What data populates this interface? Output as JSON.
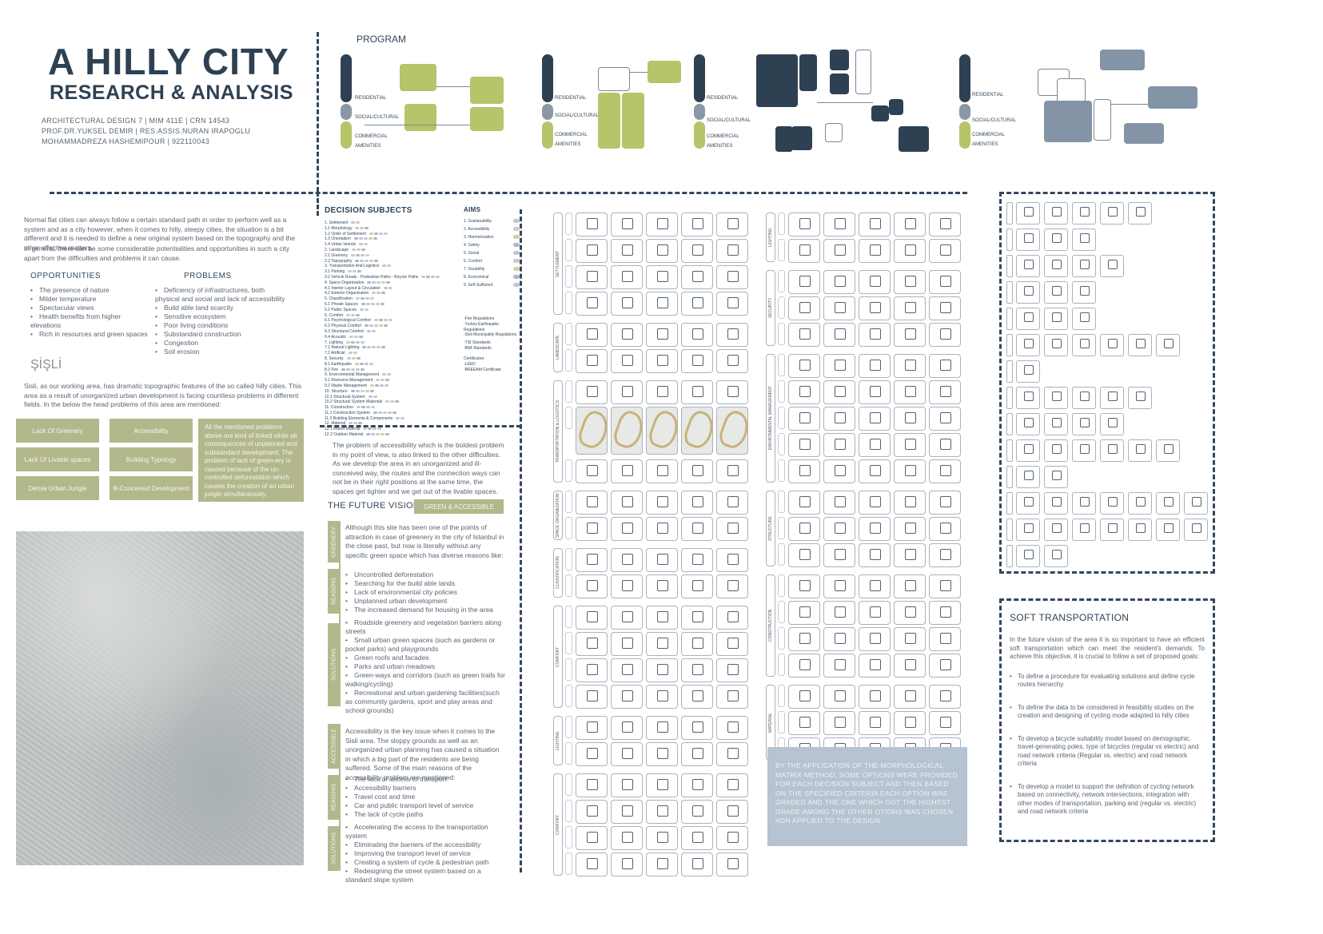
{
  "title": {
    "line1": "A HILLY CITY",
    "line2": "RESEARCH & ANALYSIS",
    "meta1": "ARCHITECTURAL DESIGN 7 | MIM 411E | CRN 14543",
    "meta2": "PROF.DR.YUKSEL DEMIR | RES.ASSIS.NURAN IRAPOGLU",
    "meta3": "MOHAMMADREZA HASHEMIPOUR | 922110043"
  },
  "program": {
    "label": "PROGRAM",
    "tags": [
      "RESIDENTIAL",
      "SOCIAL/CULTURAL",
      "COMMERCIAL",
      "AMENITIES"
    ]
  },
  "intro": {
    "para1": "Normal flat cities can always follow a certain standard path in order to perform well as a system and as a city however, when it comes to hilly, steepy cities, the situation is a bit different and it is needed to define a new original system based on the topography and the other effective matters.",
    "para2": "In general, there can be some considerable potentialities and opportunities in such a city apart from the difficulties and problems it can cause."
  },
  "opportunities": {
    "heading": "OPPORTUNITIES",
    "items": [
      "The presence of nature",
      "Milder temperature",
      "Spectacular views",
      "Health benefits from higher elevations",
      "Rich in resources and green spaces"
    ]
  },
  "problems": {
    "heading": "PROBLEMS",
    "items": [
      "Deficiency of infrastructures, both physical and social and lack of accessibility",
      "Build able land scarcity",
      "Sensitive ecosystem",
      "Poor living conditions",
      "Substandard construction",
      "Congestion",
      "Soil erosion"
    ]
  },
  "sisli": {
    "heading": "ŞİŞLİ",
    "para": "Sisli, as our working area, has dramatic topographic features of the so called hilly cities. This area as a result of unorganized urban development is facing countless problems in different fields. In the below the head problems of this area are mentioned:",
    "buttons": [
      "Lack Of Greenery",
      "Accessibility",
      "Lack Of Livable spaces",
      "Building Typology",
      "Dense Urban Jungle",
      "Ill-Conceived Development"
    ],
    "note": "All the mentioned problems above are kind of linked while all consequences of unplanned and substandard development. The problem of lack of green-ery is caused because of the un-controlled deforestation which causes the creation of an urban jungle simultaneously."
  },
  "decision": {
    "heading": "DECISION SUBJECTS",
    "aims_heading": "AIMS",
    "items": [
      "1. Settlement",
      "1.1 Morphology",
      "1.2 Order of Settlement",
      "1.3 Orientation",
      "1.4 Urban Islands",
      "2. Landscape",
      "2.1 Greenery",
      "2.2 Topography",
      "3. Transportation And Logistics",
      "3.1 Parking",
      "3.2 Vehicle Roads - Pedestrian Paths - Bicycle Paths",
      "4. Space Organization",
      "4.1 Interior Layout & Circulation",
      "4.2 Exterior Organization",
      "5. Classification",
      "5.1 Private Spaces",
      "5.2 Public Spaces",
      "6. Comfort",
      "6.1 Psychological Comfort",
      "6.2 Physical Comfort",
      "6.3 Structural Comfort",
      "6.4 Acoustic",
      "7. Lighting",
      "7.1 Natural Lighting",
      "7.2 Artificial",
      "8. Security",
      "8.1 Earthquake",
      "8.2 Fire",
      "9. Environmental Management",
      "9.1 Resource Management",
      "9.2 Waste Management",
      "10. Structure",
      "10.1 Structural System",
      "10.2 Structural System Materials",
      "11. Construction",
      "11.1 Construction System",
      "11.2 Building Elements & Components",
      "12. Material",
      "12.1 Indoor Material",
      "12.2 Outdoor Material"
    ],
    "aims": [
      "1. Sustainability",
      "2. Accessibility",
      "3. Harmonization",
      "4. Safety",
      "5. Social",
      "6. Comfort",
      "7. Durability",
      "8. Economical",
      "9. Self-Sufficient"
    ],
    "regs": [
      "-Fire Regulations",
      "-Turkey Earthquake Regulations",
      "-Sisli Municipality Regulations"
    ],
    "standards": [
      "-TSI Standards",
      "-BIM Standards"
    ],
    "cert_head": "Certificates:",
    "certs": [
      "-LEED",
      "-BREEAM Certificate"
    ],
    "dot_colors": [
      "#b9c8d6",
      "#d6c4cc",
      "#c9d3a8",
      "#a9b8c8"
    ]
  },
  "access_para": "The problem of accessibility which is the boldest problem in my point of view, is also linked to the other difficulties. As we develop the area in an unorganized and ill-conceived way, the routes and the connection ways can not be in their right positions at the same time, the spaces get tighter and we get out of the livable spaces.",
  "future": {
    "title": "THE FUTURE VISION",
    "badge": "GREEN & ACCESSIBLE",
    "greenery_tab": "GREENERY",
    "reasons_tab": "REASONS",
    "solutions_tab": "SOLUTIONS",
    "access_tab": "ACCESSIBLE",
    "greenery_para": "Although this site has been one of the points of attraction in case of greenery in the city of Istanbul in the close past, but now is literally without any specific green space which has diverse reasons like:",
    "greenery_reasons": [
      "Uncontrolled deforestation",
      "Searching for the build able lands",
      "Lack of environmental city policies",
      "Unplanned urban development",
      "The increased demand for housing in the area"
    ],
    "greenery_solutions": [
      "Roadside greenery and vegetation barriers along streets",
      "Small urban green spaces (such as gardens or pocket parks) and playgrounds",
      "Green roofs and facades",
      "Parks and urban meadows",
      "Green-ways and corridors (such as green trails for walking/cycling)",
      "Recreational and urban gardening facilities(such as community gardens, sport and play areas and school grounds)"
    ],
    "access_para": "Accessibility is the key issue when it comes to the Sisli area. The sloppy grounds as well as an unorganized urban planning has caused a situation in which a big part of the residents are being suffered. Some of the main reasons of the accessibility problem are mentioned:",
    "access_reasons": [
      "The lack of access to transport",
      "Accessibility barriers",
      "Travel cost and time",
      "Car and public transport level of service",
      "The lack of cycle paths"
    ],
    "access_solutions": [
      "Accelerating the access to the transportation system",
      "Eliminating the barriers of the accessibility",
      "Improving the transport level of service",
      "Creating a system of cycle & pedestrian path",
      "Redesigning the street system based on a standard slope system"
    ]
  },
  "matrix": {
    "labels_left": [
      "SETTLEMENT",
      "LANDSCAPE",
      "TRANSPORTATION & LOGISTICS",
      "SPACE ORGANIZATION",
      "CLASSIFICATION",
      "COMFORT",
      "LIGHTING",
      "COMFORT"
    ],
    "labels_right": [
      "LIGHTING",
      "SECURITY",
      "ENVIRONMENTAL MANAGEMENT",
      "STRUCTURE",
      "CONSTRUCTION",
      "MATERIAL"
    ],
    "method_text": "BY THE APPLICATION OF THE MORPHOLOGICAL MATRIX METHOD, SOME OPTIONS WERE PROVIDED FOR EACH DECISION SUBJECT AND THEN BASED ON THE SPECIFIED CRITERIA EACH OPTION WAS GRADED AND THE ONE WHICH GOT THE HIGHEST GRADE AMONG THE OTHER OTIONS WAS CHOSEN ADN APPLIED TO THE DESIGN."
  },
  "soft": {
    "title": "SOFT TRANSPORTATION",
    "intro": "In the future vision of the area it is so important to have an efficient soft transportation which can meet the resident's demands. To achieve this objective, it is crucial to follow a set of proposed goals:",
    "items": [
      "To define a procedure for evaluating solutions and define cycle routes hierarchy",
      "To define the data to be considered in feasibility studies on the creation and designing of cycling mode adapted to hilly cities",
      "To develop a bicycle suitability model based on demographic, travel-generating poles, type of bicycles (regular vs electric) and road network criteria (Regular vs. electric) and road network criteria",
      "To develop a model to support the definition of cycling network based on connectivity, network intersections, integration with other modes of transportation, parking and (regular vs. electric) and road network criteria"
    ]
  }
}
